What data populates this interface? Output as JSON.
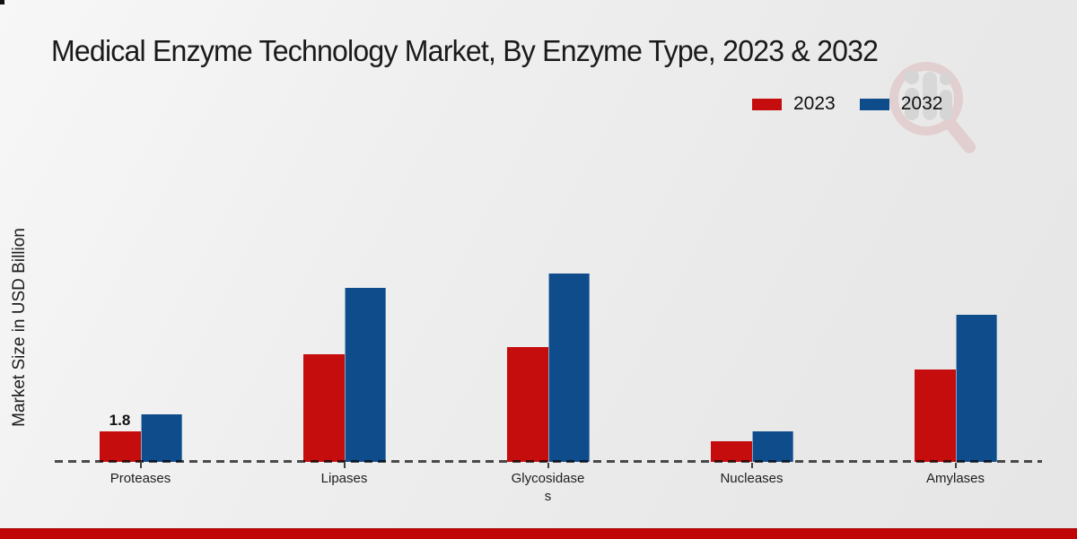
{
  "chart_data": {
    "type": "bar",
    "title": "Medical Enzyme Technology Market, By Enzyme Type, 2023 & 2032",
    "ylabel": "Market Size in USD Billion",
    "xlabel": "",
    "categories": [
      "Proteases",
      "Lipases",
      "Glycosidases",
      "Nucleases",
      "Amylases"
    ],
    "tick_labels": [
      "Proteases",
      "Lipases",
      "Glycosidase\ns",
      "Nucleases",
      "Amylases"
    ],
    "series": [
      {
        "name": "2023",
        "color": "#c60d0d",
        "values": [
          1.8,
          6.3,
          6.7,
          1.2,
          5.4
        ]
      },
      {
        "name": "2032",
        "color": "#0f4c8c",
        "values": [
          2.8,
          10.2,
          11.0,
          1.8,
          8.6
        ]
      }
    ],
    "annotations": [
      {
        "series": "2023",
        "category": "Proteases",
        "text": "1.8"
      }
    ],
    "ylim": [
      0,
      12
    ],
    "grid": false,
    "legend_position": "top-right",
    "baseline_style": "dashed",
    "accent_colors": {
      "footer": "#c00505",
      "watermark_ring": "#dcb6b6",
      "watermark_bars": "#c3c3c3"
    }
  }
}
